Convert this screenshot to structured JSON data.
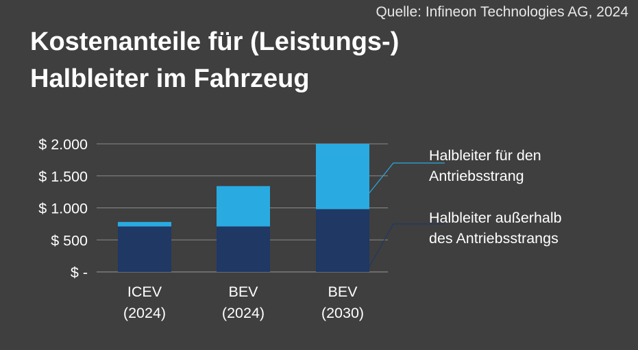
{
  "source": "Quelle: Infineon Technologies AG, 2024",
  "title_lines": [
    "Kostenanteile für (Leistungs-)",
    "Halbleiter im Fahrzeug"
  ],
  "colors": {
    "background": "#3f3f3f",
    "drivetrain": "#29abe2",
    "non_drivetrain": "#1f3864",
    "grid": "#8a8a8a"
  },
  "chart_data": {
    "type": "bar",
    "stacked": true,
    "categories": [
      [
        "ICEV",
        "(2024)"
      ],
      [
        "BEV",
        "(2024)"
      ],
      [
        "BEV",
        "(2030)"
      ]
    ],
    "ylim": [
      0,
      2000
    ],
    "yticks": [
      0,
      500,
      1000,
      1500,
      2000
    ],
    "ytick_labels": [
      "$ -",
      "$ 500",
      "$ 1.000",
      "$ 1.500",
      "$ 2.000"
    ],
    "grid": true,
    "legend_placement": "right",
    "series": [
      {
        "name": "Halbleiter außerhalb des Antriebsstrangs",
        "name_lines": [
          "Halbleiter außerhalb",
          "des Antriebsstrangs"
        ],
        "color": "#1f3864",
        "values": [
          710,
          710,
          980
        ]
      },
      {
        "name": "Halbleiter für den Antriebsstrang",
        "name_lines": [
          "Halbleiter für den",
          "Antriebsstrang"
        ],
        "color": "#29abe2",
        "values": [
          70,
          630,
          1020
        ]
      }
    ]
  }
}
